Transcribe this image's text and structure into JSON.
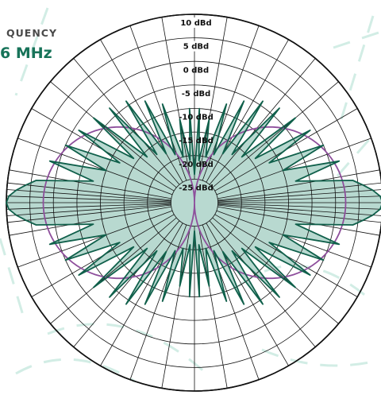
{
  "header": {
    "frequency_label": "QUENCY",
    "frequency_value": "6 MHz"
  },
  "colors": {
    "pattern_fill": "#b8d9d0",
    "pattern_stroke": "#10604b",
    "reference_circle": "#8e4f9c",
    "grid": "#111111",
    "background_motif": "#c7e8df",
    "frequency_value": "#177359"
  },
  "chart_data": {
    "type": "polar",
    "title": "",
    "radial_unit": "dBd",
    "radial_range": [
      -30,
      10
    ],
    "radial_ticks": [
      "10 dBd",
      "5 dBd",
      "0 dBd",
      "-5 dBd",
      "-10 dBd",
      "-15 dBd",
      "-20 dBd",
      "-25 dBd"
    ],
    "radial_tick_values": [
      10,
      5,
      0,
      -5,
      -10,
      -15,
      -20,
      -25
    ],
    "angular_spoke_step_deg": 10,
    "grid": true,
    "series": [
      {
        "kind": "filled-pattern",
        "description_hint": "multi-lobe radiation pattern",
        "azimuth_deg_and_gain_dBd": [
          [
            0,
            -24
          ],
          [
            3,
            -10
          ],
          [
            6,
            -21
          ],
          [
            10,
            -12
          ],
          [
            14,
            -20
          ],
          [
            18,
            -8
          ],
          [
            22,
            -19
          ],
          [
            26,
            -6
          ],
          [
            30,
            -18
          ],
          [
            34,
            -4
          ],
          [
            38,
            -17
          ],
          [
            42,
            -3
          ],
          [
            46,
            -16
          ],
          [
            50,
            -2
          ],
          [
            54,
            -14
          ],
          [
            58,
            -1
          ],
          [
            62,
            -12
          ],
          [
            66,
            0
          ],
          [
            70,
            -10
          ],
          [
            74,
            2
          ],
          [
            78,
            -8
          ],
          [
            82,
            4
          ],
          [
            84,
            6
          ],
          [
            86,
            8
          ],
          [
            88,
            9.5
          ],
          [
            90,
            10
          ],
          [
            92,
            9.5
          ],
          [
            94,
            8
          ],
          [
            96,
            6
          ],
          [
            98,
            4
          ],
          [
            102,
            -8
          ],
          [
            106,
            2
          ],
          [
            110,
            -10
          ],
          [
            114,
            0
          ],
          [
            118,
            -12
          ],
          [
            122,
            -1
          ],
          [
            126,
            -14
          ],
          [
            130,
            -2
          ],
          [
            134,
            -16
          ],
          [
            138,
            -3
          ],
          [
            142,
            -17
          ],
          [
            146,
            -4
          ],
          [
            150,
            -18
          ],
          [
            154,
            -6
          ],
          [
            158,
            -19
          ],
          [
            162,
            -8
          ],
          [
            166,
            -20
          ],
          [
            170,
            -12
          ],
          [
            174,
            -21
          ],
          [
            177,
            -10
          ],
          [
            180,
            -24
          ],
          [
            183,
            -10
          ],
          [
            186,
            -21
          ],
          [
            190,
            -12
          ],
          [
            194,
            -20
          ],
          [
            198,
            -8
          ],
          [
            202,
            -19
          ],
          [
            206,
            -6
          ],
          [
            210,
            -18
          ],
          [
            214,
            -4
          ],
          [
            218,
            -17
          ],
          [
            222,
            -3
          ],
          [
            226,
            -16
          ],
          [
            230,
            -2
          ],
          [
            234,
            -14
          ],
          [
            238,
            -1
          ],
          [
            242,
            -12
          ],
          [
            246,
            0
          ],
          [
            250,
            -10
          ],
          [
            254,
            2
          ],
          [
            258,
            -8
          ],
          [
            262,
            4
          ],
          [
            264,
            6
          ],
          [
            266,
            8
          ],
          [
            268,
            9.5
          ],
          [
            270,
            10
          ],
          [
            272,
            9.5
          ],
          [
            274,
            8
          ],
          [
            276,
            6
          ],
          [
            278,
            4
          ],
          [
            282,
            -8
          ],
          [
            286,
            2
          ],
          [
            290,
            -10
          ],
          [
            294,
            0
          ],
          [
            298,
            -12
          ],
          [
            302,
            -1
          ],
          [
            306,
            -14
          ],
          [
            310,
            -2
          ],
          [
            314,
            -16
          ],
          [
            318,
            -3
          ],
          [
            322,
            -17
          ],
          [
            326,
            -4
          ],
          [
            330,
            -18
          ],
          [
            334,
            -6
          ],
          [
            338,
            -19
          ],
          [
            342,
            -8
          ],
          [
            346,
            -20
          ],
          [
            350,
            -12
          ],
          [
            354,
            -21
          ],
          [
            357,
            -10
          ]
        ]
      },
      {
        "kind": "reference-figure-eight",
        "description_hint": "smooth two-lobe reference",
        "peak_gain_dBd": 2.15,
        "peak_azimuth_deg": 90
      }
    ]
  }
}
